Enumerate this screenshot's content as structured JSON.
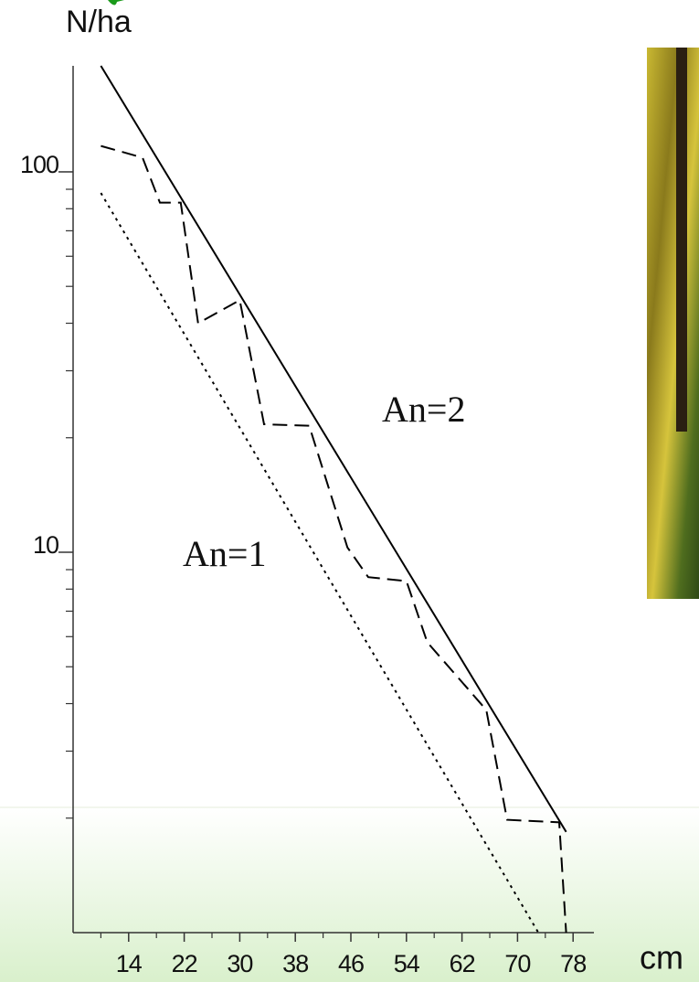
{
  "chart_data": {
    "type": "line",
    "y_label": "N/ha",
    "x_unit_label": "cm",
    "log_y": true,
    "xlim": [
      6,
      81
    ],
    "ylim": [
      1,
      190
    ],
    "xticks": [
      14,
      22,
      30,
      38,
      46,
      54,
      62,
      70,
      78
    ],
    "xminorticks": [
      10,
      18,
      26,
      34,
      42,
      50,
      58,
      66,
      74
    ],
    "yticks": [
      10,
      100
    ],
    "yminorticks": [
      2,
      3,
      4,
      5,
      6,
      7,
      8,
      9,
      20,
      30,
      40,
      50,
      60,
      70,
      80,
      90
    ],
    "annotations": [
      "An=2",
      "An=1"
    ],
    "series": [
      {
        "color": "#000000",
        "dash": "solid",
        "x": [
          10,
          77
        ],
        "values": [
          190,
          1.84
        ]
      },
      {
        "color": "#000000",
        "dash": "dashed",
        "x": [
          10,
          16,
          18.5,
          21.5,
          24,
          30,
          33.5,
          40,
          45.5,
          48.5,
          54,
          57,
          65.5,
          68.5,
          76,
          77
        ],
        "values": [
          117,
          109,
          83,
          83,
          40,
          46,
          21.7,
          21.5,
          10.3,
          8.6,
          8.4,
          5.8,
          3.85,
          1.98,
          1.95,
          1.0
        ]
      },
      {
        "color": "#000000",
        "dash": "dotted",
        "x": [
          10,
          73
        ],
        "values": [
          88,
          1
        ]
      }
    ]
  }
}
